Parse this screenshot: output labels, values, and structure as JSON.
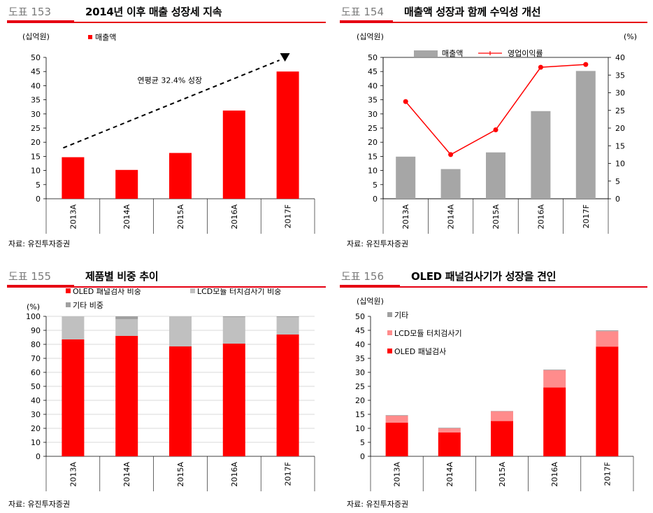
{
  "panels": [
    {
      "number": "도표 153",
      "title": "2014년 이후 매출 성장세 지속",
      "source": "자료: 유진투자증권"
    },
    {
      "number": "도표 154",
      "title": "매출액 성장과 함께 수익성 개선",
      "source": "자료: 유진투자증권"
    },
    {
      "number": "도표 155",
      "title": "제품별 비중 추이",
      "source": "자료: 유진투자증권"
    },
    {
      "number": "도표 156",
      "title": "OLED 패널검사기가 성장을 견인",
      "source": "자료: 유진투자증권"
    }
  ],
  "chart_data": [
    {
      "type": "bar",
      "unit_label": "(십억원)",
      "categories": [
        "2013A",
        "2014A",
        "2015A",
        "2016A",
        "2017F"
      ],
      "series": [
        {
          "name": "매출액",
          "values": [
            14.7,
            10.2,
            16.2,
            31.2,
            45.0
          ],
          "color": "#ff0000"
        }
      ],
      "ylim": [
        0,
        50
      ],
      "yticks": [
        0,
        5,
        10,
        15,
        20,
        25,
        30,
        35,
        40,
        45,
        50
      ],
      "annotation": "연평균 32.4% 성장",
      "legend_position": "top-left"
    },
    {
      "type": "bar+line",
      "unit_label_left": "(십억원)",
      "unit_label_right": "(%)",
      "categories": [
        "2013A",
        "2014A",
        "2015A",
        "2016A",
        "2017F"
      ],
      "series": [
        {
          "name": "매출액",
          "type": "bar",
          "axis": "left",
          "values": [
            14.9,
            10.5,
            16.4,
            31.0,
            45.2
          ],
          "color": "#a6a6a6"
        },
        {
          "name": "영업이익률",
          "type": "line",
          "axis": "right",
          "values": [
            27.5,
            12.5,
            19.5,
            37.2,
            38.0
          ],
          "color": "#ff0000"
        }
      ],
      "ylim_left": [
        0,
        50
      ],
      "yticks_left": [
        0,
        5,
        10,
        15,
        20,
        25,
        30,
        35,
        40,
        45,
        50
      ],
      "ylim_right": [
        0,
        40
      ],
      "yticks_right": [
        0,
        5,
        10,
        15,
        20,
        25,
        30,
        35,
        40
      ],
      "legend_position": "top-center"
    },
    {
      "type": "stacked-bar",
      "unit_label": "(%)",
      "categories": [
        "2013A",
        "2014A",
        "2015A",
        "2016A",
        "2017F"
      ],
      "series": [
        {
          "name": "OLED 패널검사 비중",
          "values": [
            83.5,
            86.0,
            78.5,
            80.5,
            87.0
          ],
          "color": "#ff0000"
        },
        {
          "name": "LCD모듈 터치검사기 비중",
          "values": [
            16.5,
            12.0,
            21.5,
            19.0,
            12.5
          ],
          "color": "#c0c0c0"
        },
        {
          "name": "기타 비중",
          "values": [
            0,
            2.0,
            0,
            0.5,
            0.5
          ],
          "color": "#a0a0a0"
        }
      ],
      "ylim": [
        0,
        100
      ],
      "yticks": [
        0,
        10,
        20,
        30,
        40,
        50,
        60,
        70,
        80,
        90,
        100
      ],
      "legend_position": "top"
    },
    {
      "type": "stacked-bar",
      "unit_label": "(십억원)",
      "categories": [
        "2013A",
        "2014A",
        "2015A",
        "2016A",
        "2017F"
      ],
      "series": [
        {
          "name": "OLED 패널검사",
          "values": [
            12.0,
            8.5,
            12.6,
            24.6,
            39.2
          ],
          "color": "#ff0000"
        },
        {
          "name": "LCD모듈 터치검사기",
          "values": [
            2.5,
            1.5,
            3.5,
            6.2,
            5.5
          ],
          "color": "#ff8c8c"
        },
        {
          "name": "기타",
          "values": [
            0.2,
            0.2,
            0.1,
            0.2,
            0.3
          ],
          "color": "#a0a0a0"
        }
      ],
      "ylim": [
        0,
        50
      ],
      "yticks": [
        0,
        5,
        10,
        15,
        20,
        25,
        30,
        35,
        40,
        45,
        50
      ],
      "legend_position": "top-left"
    }
  ]
}
